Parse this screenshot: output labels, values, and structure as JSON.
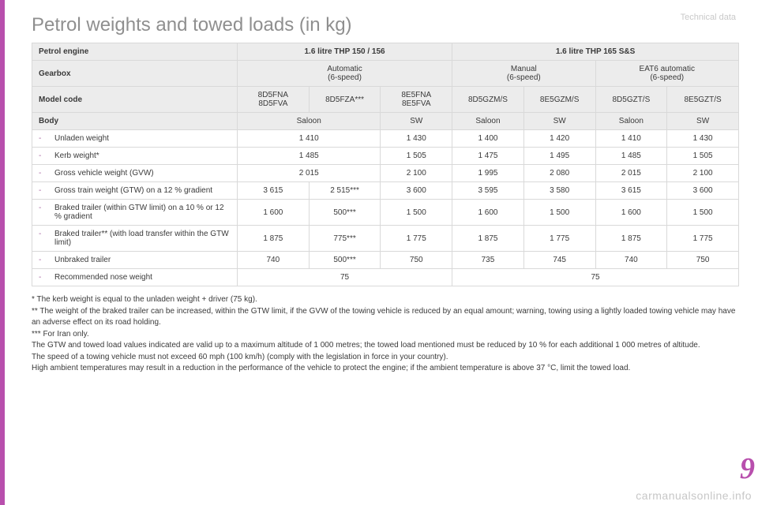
{
  "section_label": "Technical data",
  "title": "Petrol weights and towed loads (in kg)",
  "chapter_number": "9",
  "watermark": "carmanualsonline.info",
  "colors": {
    "accent": "#b84fad",
    "header_bg": "#ececec",
    "border": "#d9d9d9",
    "text": "#3a3a3a",
    "muted": "#8f8f8f",
    "label_muted": "#c9c9c9"
  },
  "table": {
    "hdr": {
      "petrol_engine": "Petrol engine",
      "engine_a": "1.6 litre THP 150 / 156",
      "engine_b": "1.6 litre THP 165 S&S",
      "gearbox": "Gearbox",
      "gb_auto": "Automatic\n(6-speed)",
      "gb_manual": "Manual\n(6-speed)",
      "gb_eat6": "EAT6 automatic\n(6-speed)",
      "model_code": "Model code",
      "mc1": "8D5FNA\n8D5FVA",
      "mc2": "8D5FZA***",
      "mc3": "8E5FNA\n8E5FVA",
      "mc4": "8D5GZM/S",
      "mc5": "8E5GZM/S",
      "mc6": "8D5GZT/S",
      "mc7": "8E5GZT/S",
      "body": "Body",
      "saloon": "Saloon",
      "sw": "SW"
    },
    "rows": [
      {
        "label": "Unladen weight",
        "v": [
          "1 410",
          "",
          "1 430",
          "1 400",
          "1 420",
          "1 410",
          "1 430"
        ],
        "merge12": true
      },
      {
        "label": "Kerb weight*",
        "v": [
          "1 485",
          "",
          "1 505",
          "1 475",
          "1 495",
          "1 485",
          "1 505"
        ],
        "merge12": true
      },
      {
        "label": "Gross vehicle weight (GVW)",
        "v": [
          "2 015",
          "",
          "2 100",
          "1 995",
          "2 080",
          "2 015",
          "2 100"
        ],
        "merge12": true
      },
      {
        "label": "Gross train weight (GTW) on a 12 % gradient",
        "v": [
          "3 615",
          "2 515***",
          "3 600",
          "3 595",
          "3 580",
          "3 615",
          "3 600"
        ]
      },
      {
        "label": "Braked trailer (within GTW limit) on a 10 % or 12 % gradient",
        "v": [
          "1 600",
          "500***",
          "1 500",
          "1 600",
          "1 500",
          "1 600",
          "1 500"
        ]
      },
      {
        "label": "Braked trailer** (with load transfer within the GTW limit)",
        "v": [
          "1 875",
          "775***",
          "1 775",
          "1 875",
          "1 775",
          "1 875",
          "1 775"
        ]
      },
      {
        "label": "Unbraked trailer",
        "v": [
          "740",
          "500***",
          "750",
          "735",
          "745",
          "740",
          "750"
        ]
      },
      {
        "label": "Recommended nose weight",
        "v": [
          "75",
          "",
          "",
          "75",
          "",
          "",
          ""
        ],
        "merge_nose": true
      }
    ]
  },
  "footnotes": [
    "* The kerb weight is equal to the unladen weight + driver (75 kg).",
    "** The weight of the braked trailer can be increased, within the GTW limit, if the GVW of the towing vehicle is reduced by an equal amount; warning, towing using a lightly loaded towing vehicle may have an adverse effect on its road holding.",
    "*** For Iran only.",
    "The GTW and towed load values indicated are valid up to a maximum altitude of 1 000 metres; the towed load mentioned must be reduced by 10 % for each additional 1 000 metres of altitude.",
    "The speed of a towing vehicle must not exceed 60 mph (100 km/h) (comply with the legislation in force in your country).",
    "High ambient temperatures may result in a reduction in the performance of the vehicle to protect the engine; if the ambient temperature is above 37 °C, limit the towed load."
  ]
}
